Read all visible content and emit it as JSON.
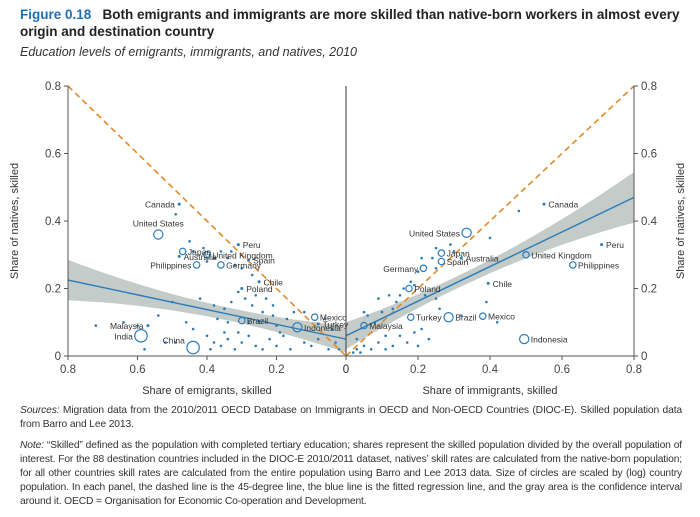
{
  "figure": {
    "number": "Figure 0.18",
    "title": "Both emigrants and immigrants are more skilled than native-born workers in almost every origin and destination country",
    "subtitle": "Education levels of emigrants, immigrants, and natives, 2010"
  },
  "notes": {
    "sources_label": "Sources:",
    "sources_text": " Migration data from the 2010/2011 OECD Database on Immigrants in OECD and Non-OECD Countries (DIOC-E). Skilled population data from Barro and Lee 2013.",
    "note_label": "Note:",
    "note_text": " “Skilled” defined as the population with completed tertiary education; shares represent the skilled population divided by the overall population of interest. For the 88 destination countries included in the DIOC-E 2010/2011 dataset, natives’ skill rates are calculated from the native-born population; for all other countries skill rates are calculated from the entire population using Barro and Lee 2013 data. Size of circles are scaled by (log) country population. In each panel, the dashed line is the 45-degree line, the blue line is the fitted regression line, and the gray area is the confidence interval around it. OECD = Organisation for Economic Co-operation and Development."
  },
  "colors": {
    "point": "#2b7bb9",
    "regression": "#2b7bb9",
    "ci_band": "#b9c3be",
    "diagonal": "#e08a2c",
    "axis": "#555555",
    "title_accent": "#1f6fb5"
  },
  "chart_data": [
    {
      "type": "scatter",
      "panel": "left",
      "xlabel": "Share of emigrants, skilled",
      "ylabel": "Share of natives, skilled",
      "xlim": [
        0.8,
        0
      ],
      "ylim": [
        0,
        0.8
      ],
      "x_ticks": [
        "0.8",
        "0.6",
        "0.4",
        "0.2",
        "0"
      ],
      "y_ticks": [
        "0",
        "0.2",
        "0.4",
        "0.6",
        "0.8"
      ],
      "reference_line": {
        "type": "45-degree",
        "from": [
          0.8,
          0.8
        ],
        "to": [
          0,
          0
        ]
      },
      "regression": {
        "from": [
          0.8,
          0.225
        ],
        "to": [
          0,
          0.05
        ],
        "ci_halfwidth_at_ends": [
          0.06,
          0.04
        ],
        "ci_halfwidth_mid": 0.02
      },
      "labeled_points": [
        {
          "label": "Canada",
          "x": 0.48,
          "y": 0.45,
          "size": 1
        },
        {
          "label": "United States",
          "x": 0.54,
          "y": 0.36,
          "size": 3
        },
        {
          "label": "Japan",
          "x": 0.47,
          "y": 0.31,
          "size": 2
        },
        {
          "label": "Australia",
          "x": 0.48,
          "y": 0.295,
          "size": 1
        },
        {
          "label": "Philippines",
          "x": 0.43,
          "y": 0.27,
          "size": 2
        },
        {
          "label": "United Kingdom",
          "x": 0.4,
          "y": 0.3,
          "size": 2
        },
        {
          "label": "Peru",
          "x": 0.31,
          "y": 0.33,
          "size": 1
        },
        {
          "label": "Spain",
          "x": 0.28,
          "y": 0.285,
          "size": 1
        },
        {
          "label": "Germany",
          "x": 0.36,
          "y": 0.27,
          "size": 2
        },
        {
          "label": "Chile",
          "x": 0.25,
          "y": 0.22,
          "size": 1
        },
        {
          "label": "Poland",
          "x": 0.3,
          "y": 0.2,
          "size": 1
        },
        {
          "label": "Brazil",
          "x": 0.3,
          "y": 0.105,
          "size": 2
        },
        {
          "label": "Mexico",
          "x": 0.09,
          "y": 0.115,
          "size": 2
        },
        {
          "label": "Turkey",
          "x": 0.08,
          "y": 0.095,
          "size": 1
        },
        {
          "label": "Indonesia",
          "x": 0.14,
          "y": 0.085,
          "size": 3
        },
        {
          "label": "Malaysia",
          "x": 0.57,
          "y": 0.09,
          "size": 1
        },
        {
          "label": "India",
          "x": 0.59,
          "y": 0.06,
          "size": 4
        },
        {
          "label": "China",
          "x": 0.44,
          "y": 0.025,
          "size": 4
        }
      ],
      "unlabeled_points": [
        [
          0.49,
          0.42
        ],
        [
          0.45,
          0.34
        ],
        [
          0.44,
          0.31
        ],
        [
          0.4,
          0.28
        ],
        [
          0.41,
          0.32
        ],
        [
          0.38,
          0.29
        ],
        [
          0.36,
          0.31
        ],
        [
          0.34,
          0.29
        ],
        [
          0.32,
          0.27
        ],
        [
          0.33,
          0.31
        ],
        [
          0.3,
          0.26
        ],
        [
          0.27,
          0.24
        ],
        [
          0.31,
          0.19
        ],
        [
          0.29,
          0.17
        ],
        [
          0.26,
          0.18
        ],
        [
          0.23,
          0.17
        ],
        [
          0.21,
          0.15
        ],
        [
          0.24,
          0.13
        ],
        [
          0.27,
          0.15
        ],
        [
          0.33,
          0.16
        ],
        [
          0.35,
          0.14
        ],
        [
          0.38,
          0.15
        ],
        [
          0.42,
          0.17
        ],
        [
          0.5,
          0.16
        ],
        [
          0.54,
          0.12
        ],
        [
          0.46,
          0.1
        ],
        [
          0.34,
          0.1
        ],
        [
          0.37,
          0.11
        ],
        [
          0.28,
          0.1
        ],
        [
          0.25,
          0.1
        ],
        [
          0.2,
          0.09
        ],
        [
          0.17,
          0.11
        ],
        [
          0.15,
          0.13
        ],
        [
          0.12,
          0.13
        ],
        [
          0.06,
          0.11
        ],
        [
          0.04,
          0.08
        ],
        [
          0.64,
          0.1
        ],
        [
          0.6,
          0.09
        ],
        [
          0.72,
          0.09
        ],
        [
          0.58,
          0.02
        ],
        [
          0.52,
          0.04
        ],
        [
          0.49,
          0.04
        ],
        [
          0.4,
          0.06
        ],
        [
          0.38,
          0.04
        ],
        [
          0.36,
          0.03
        ],
        [
          0.34,
          0.05
        ],
        [
          0.32,
          0.02
        ],
        [
          0.3,
          0.04
        ],
        [
          0.28,
          0.06
        ],
        [
          0.26,
          0.03
        ],
        [
          0.24,
          0.02
        ],
        [
          0.22,
          0.05
        ],
        [
          0.2,
          0.03
        ],
        [
          0.18,
          0.06
        ],
        [
          0.16,
          0.02
        ],
        [
          0.12,
          0.04
        ],
        [
          0.1,
          0.03
        ],
        [
          0.08,
          0.05
        ],
        [
          0.05,
          0.02
        ],
        [
          0.03,
          0.04
        ],
        [
          0.02,
          0.02
        ],
        [
          0.39,
          0.02
        ],
        [
          0.35,
          0.07
        ],
        [
          0.31,
          0.07
        ],
        [
          0.44,
          0.08
        ],
        [
          0.21,
          0.12
        ],
        [
          0.19,
          0.07
        ]
      ]
    },
    {
      "type": "scatter",
      "panel": "right",
      "xlabel": "Share of immigrants, skilled",
      "ylabel": "Share of natives, skilled",
      "xlim": [
        0,
        0.8
      ],
      "ylim": [
        0,
        0.8
      ],
      "x_ticks": [
        "0",
        "0.2",
        "0.4",
        "0.6",
        "0.8"
      ],
      "y_ticks": [
        "0",
        "0.2",
        "0.4",
        "0.6",
        "0.8"
      ],
      "reference_line": {
        "type": "45-degree",
        "from": [
          0,
          0
        ],
        "to": [
          0.8,
          0.8
        ]
      },
      "regression": {
        "from": [
          0,
          0.06
        ],
        "to": [
          0.8,
          0.47
        ],
        "ci_halfwidth_at_ends": [
          0.04,
          0.075
        ],
        "ci_halfwidth_mid": 0.02
      },
      "labeled_points": [
        {
          "label": "Canada",
          "x": 0.55,
          "y": 0.45,
          "size": 1
        },
        {
          "label": "United States",
          "x": 0.335,
          "y": 0.365,
          "size": 3
        },
        {
          "label": "Japan",
          "x": 0.265,
          "y": 0.305,
          "size": 2
        },
        {
          "label": "Australia",
          "x": 0.32,
          "y": 0.29,
          "size": 1
        },
        {
          "label": "Spain",
          "x": 0.265,
          "y": 0.28,
          "size": 2
        },
        {
          "label": "Germany",
          "x": 0.215,
          "y": 0.26,
          "size": 2
        },
        {
          "label": "Poland",
          "x": 0.175,
          "y": 0.2,
          "size": 2
        },
        {
          "label": "Chile",
          "x": 0.395,
          "y": 0.215,
          "size": 1
        },
        {
          "label": "United Kingdom",
          "x": 0.5,
          "y": 0.3,
          "size": 2
        },
        {
          "label": "Peru",
          "x": 0.71,
          "y": 0.33,
          "size": 1
        },
        {
          "label": "Philippines",
          "x": 0.63,
          "y": 0.27,
          "size": 2
        },
        {
          "label": "Turkey",
          "x": 0.18,
          "y": 0.115,
          "size": 2
        },
        {
          "label": "Brazil",
          "x": 0.285,
          "y": 0.115,
          "size": 3
        },
        {
          "label": "Mexico",
          "x": 0.38,
          "y": 0.118,
          "size": 2
        },
        {
          "label": "Malaysia",
          "x": 0.05,
          "y": 0.09,
          "size": 2
        },
        {
          "label": "Indonesia",
          "x": 0.495,
          "y": 0.05,
          "size": 3
        }
      ],
      "unlabeled_points": [
        [
          0.48,
          0.43
        ],
        [
          0.4,
          0.35
        ],
        [
          0.29,
          0.33
        ],
        [
          0.25,
          0.32
        ],
        [
          0.3,
          0.31
        ],
        [
          0.24,
          0.29
        ],
        [
          0.21,
          0.29
        ],
        [
          0.25,
          0.26
        ],
        [
          0.2,
          0.25
        ],
        [
          0.18,
          0.22
        ],
        [
          0.19,
          0.21
        ],
        [
          0.16,
          0.2
        ],
        [
          0.15,
          0.18
        ],
        [
          0.22,
          0.18
        ],
        [
          0.25,
          0.17
        ],
        [
          0.14,
          0.16
        ],
        [
          0.12,
          0.18
        ],
        [
          0.39,
          0.16
        ],
        [
          0.42,
          0.1
        ],
        [
          0.32,
          0.12
        ],
        [
          0.09,
          0.17
        ],
        [
          0.05,
          0.13
        ],
        [
          0.06,
          0.12
        ],
        [
          0.1,
          0.13
        ],
        [
          0.13,
          0.14
        ],
        [
          0.08,
          0.1
        ],
        [
          0.03,
          0.05
        ],
        [
          0.05,
          0.03
        ],
        [
          0.07,
          0.02
        ],
        [
          0.09,
          0.04
        ],
        [
          0.11,
          0.02
        ],
        [
          0.13,
          0.03
        ],
        [
          0.15,
          0.06
        ],
        [
          0.17,
          0.04
        ],
        [
          0.19,
          0.07
        ],
        [
          0.2,
          0.03
        ],
        [
          0.23,
          0.05
        ],
        [
          0.03,
          0.02
        ],
        [
          0.02,
          0.01
        ],
        [
          0.04,
          0.01
        ],
        [
          0.21,
          0.08
        ],
        [
          0.11,
          0.06
        ],
        [
          0.26,
          0.14
        ]
      ]
    }
  ]
}
